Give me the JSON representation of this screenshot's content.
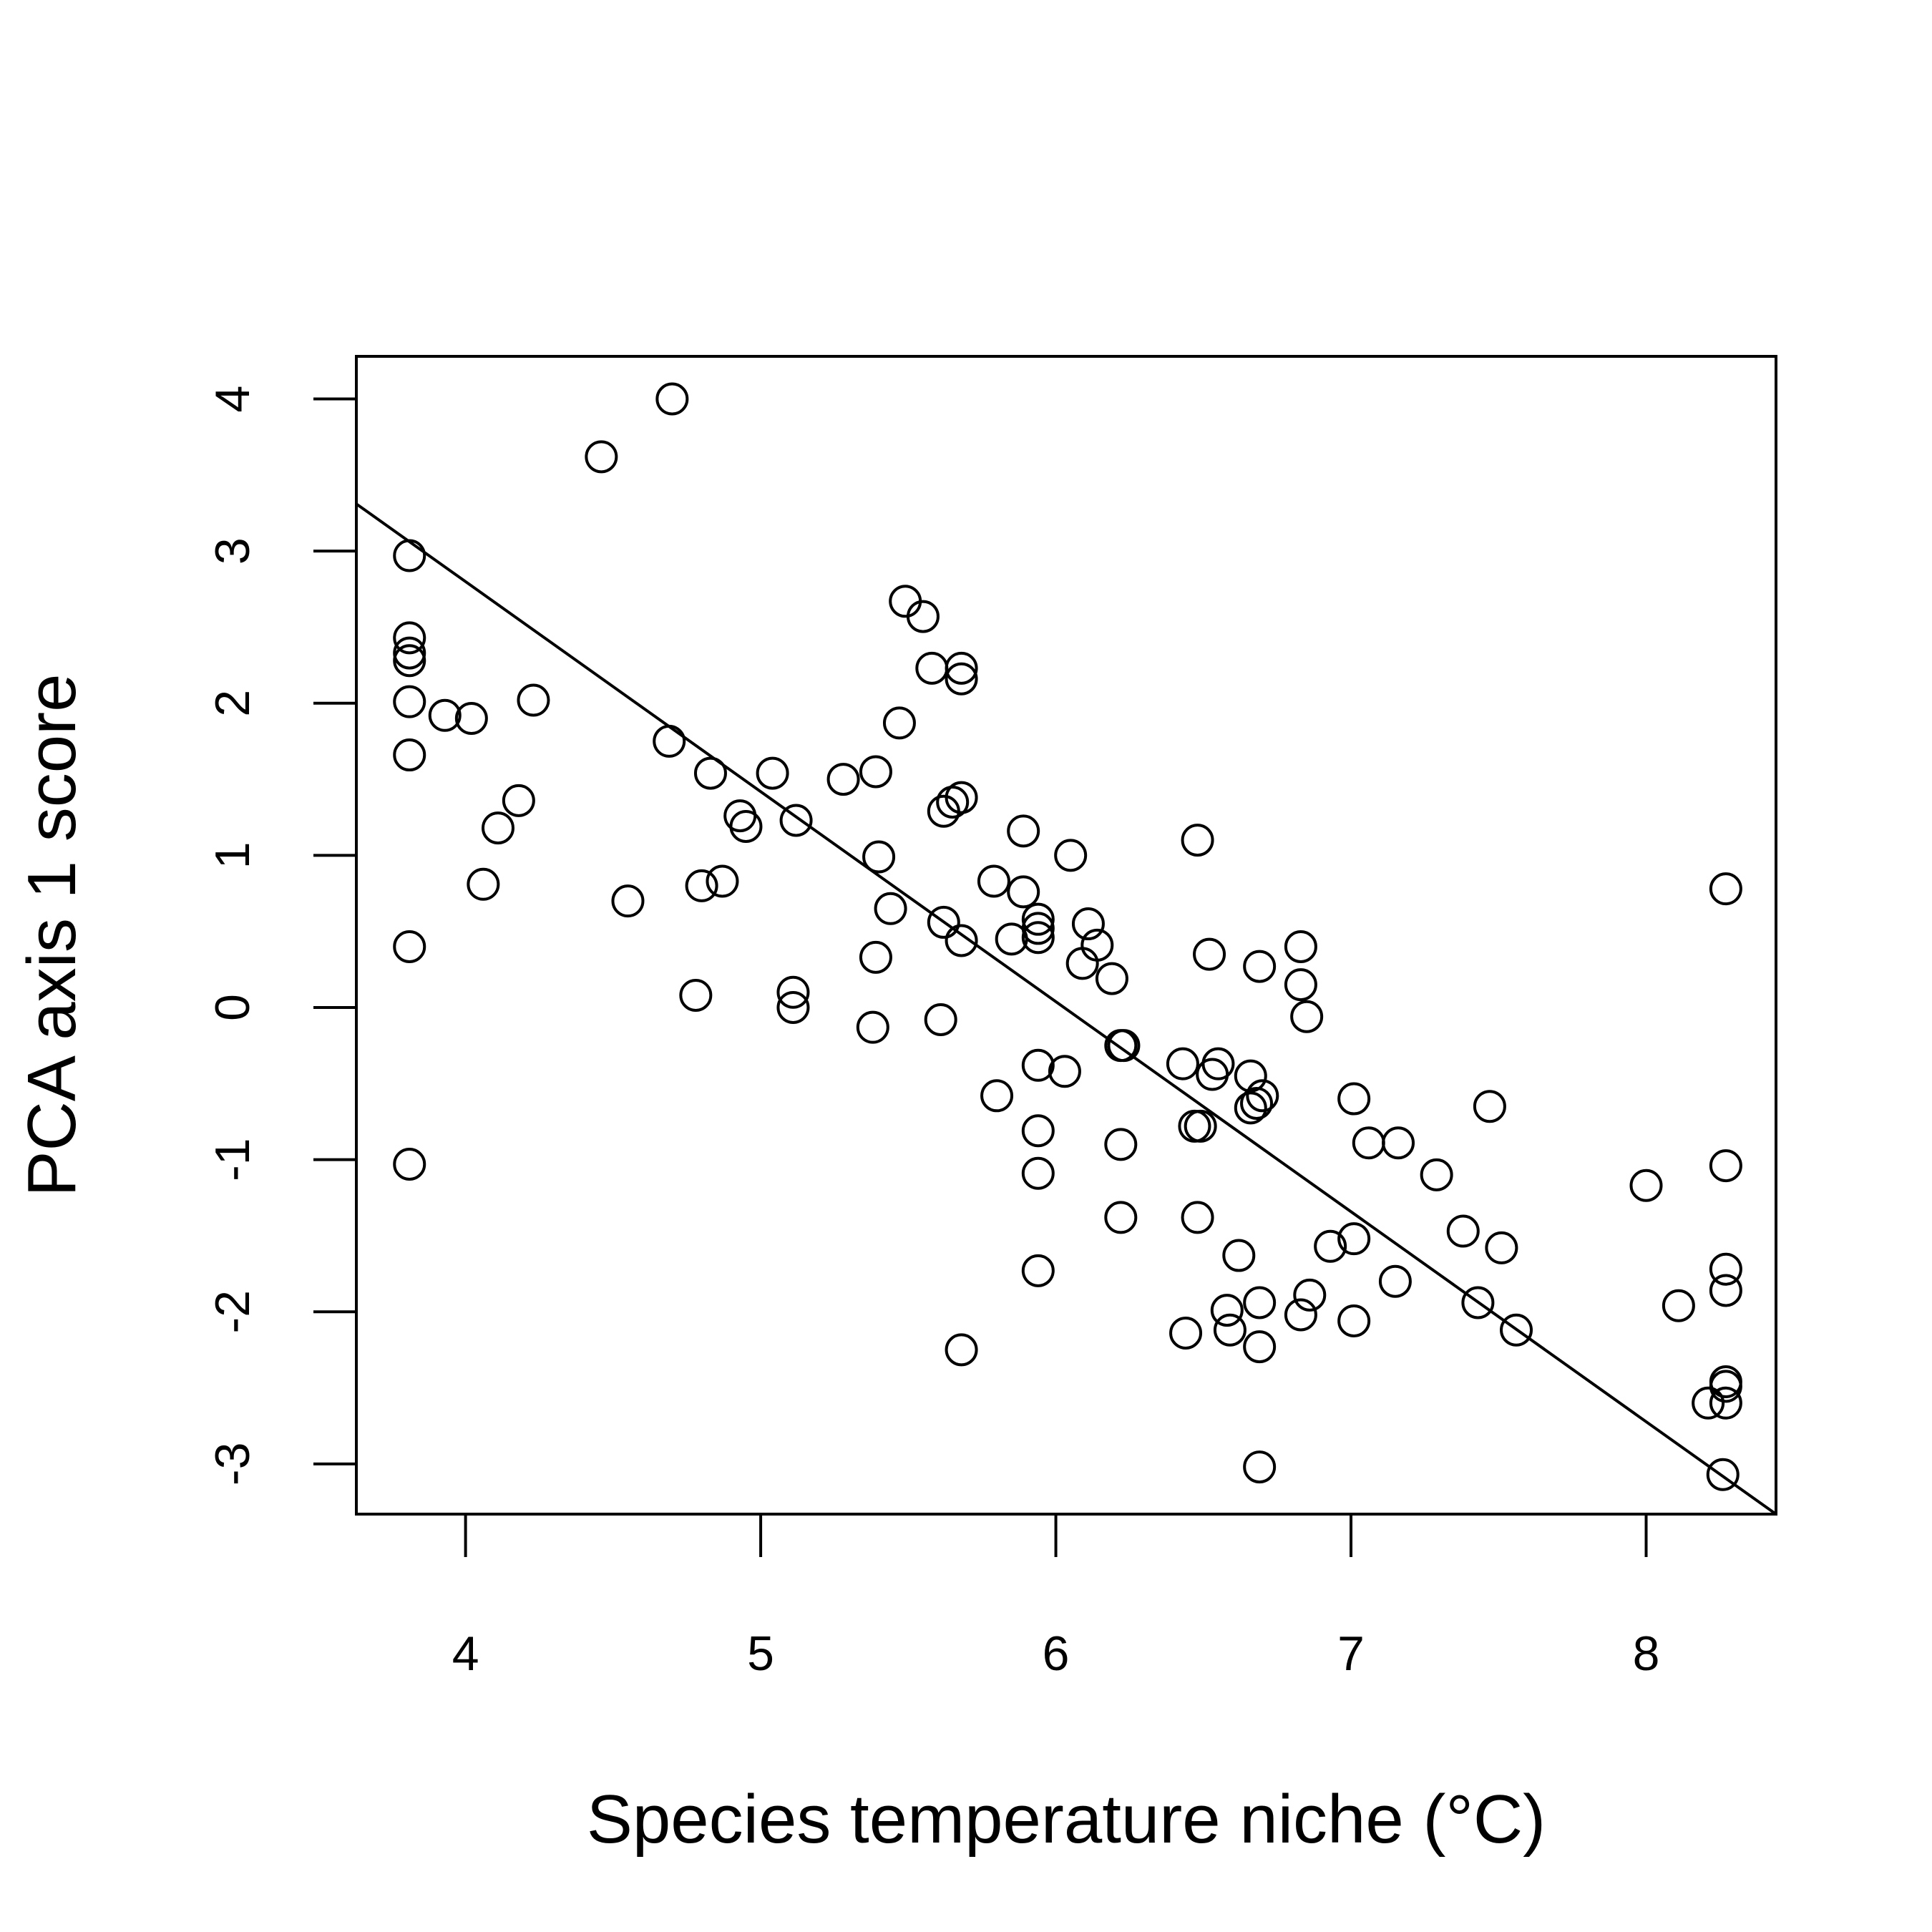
{
  "chart_data": {
    "type": "scatter",
    "xlabel": "Species temperature niche (°C)",
    "ylabel": "PCA axis 1 score",
    "xlim": [
      3.63,
      8.44
    ],
    "ylim": [
      -3.33,
      4.28
    ],
    "x_ticks": [
      {
        "value": 4,
        "label": "4"
      },
      {
        "value": 5,
        "label": "5"
      },
      {
        "value": 6,
        "label": "6"
      },
      {
        "value": 7,
        "label": "7"
      },
      {
        "value": 8,
        "label": "8"
      }
    ],
    "y_ticks": [
      {
        "value": -3,
        "label": "-3"
      },
      {
        "value": -2,
        "label": "-2"
      },
      {
        "value": -1,
        "label": "-1"
      },
      {
        "value": 0,
        "label": "0"
      },
      {
        "value": 1,
        "label": "1"
      },
      {
        "value": 2,
        "label": "2"
      },
      {
        "value": 3,
        "label": "3"
      },
      {
        "value": 4,
        "label": "4"
      }
    ],
    "grid": false,
    "point_style": "open-circle",
    "regression_line": {
      "x": [
        3.63,
        8.44
      ],
      "y": [
        3.31,
        -3.33
      ]
    },
    "points": [
      {
        "x": 3.81,
        "y": 2.97
      },
      {
        "x": 3.81,
        "y": 2.43
      },
      {
        "x": 3.81,
        "y": 2.33
      },
      {
        "x": 3.81,
        "y": 2.28
      },
      {
        "x": 3.81,
        "y": 2.01
      },
      {
        "x": 3.81,
        "y": 1.66
      },
      {
        "x": 3.81,
        "y": 0.4
      },
      {
        "x": 3.81,
        "y": -1.03
      },
      {
        "x": 3.93,
        "y": 1.92
      },
      {
        "x": 4.02,
        "y": 1.9
      },
      {
        "x": 4.06,
        "y": 0.81
      },
      {
        "x": 4.11,
        "y": 1.18
      },
      {
        "x": 4.18,
        "y": 1.36
      },
      {
        "x": 4.23,
        "y": 2.02
      },
      {
        "x": 4.46,
        "y": 3.62
      },
      {
        "x": 4.55,
        "y": 0.7
      },
      {
        "x": 4.69,
        "y": 1.75
      },
      {
        "x": 4.7,
        "y": 4.0
      },
      {
        "x": 4.78,
        "y": 0.08
      },
      {
        "x": 4.8,
        "y": 0.8
      },
      {
        "x": 4.83,
        "y": 1.54
      },
      {
        "x": 4.87,
        "y": 0.83
      },
      {
        "x": 4.93,
        "y": 1.26
      },
      {
        "x": 4.95,
        "y": 1.19
      },
      {
        "x": 5.04,
        "y": 1.54
      },
      {
        "x": 5.11,
        "y": 0.1
      },
      {
        "x": 5.11,
        "y": 0.0
      },
      {
        "x": 5.12,
        "y": 1.23
      },
      {
        "x": 5.28,
        "y": 1.5
      },
      {
        "x": 5.39,
        "y": 1.55
      },
      {
        "x": 5.39,
        "y": 0.33
      },
      {
        "x": 5.38,
        "y": -0.13
      },
      {
        "x": 5.4,
        "y": 0.99
      },
      {
        "x": 5.44,
        "y": 0.65
      },
      {
        "x": 5.47,
        "y": 1.87
      },
      {
        "x": 5.49,
        "y": 2.67
      },
      {
        "x": 5.55,
        "y": 2.57
      },
      {
        "x": 5.58,
        "y": 2.23
      },
      {
        "x": 5.62,
        "y": 1.29
      },
      {
        "x": 5.62,
        "y": 0.56
      },
      {
        "x": 5.61,
        "y": -0.08
      },
      {
        "x": 5.65,
        "y": 1.35
      },
      {
        "x": 5.68,
        "y": 1.38
      },
      {
        "x": 5.68,
        "y": 2.23
      },
      {
        "x": 5.68,
        "y": 2.16
      },
      {
        "x": 5.68,
        "y": 0.44
      },
      {
        "x": 5.68,
        "y": -2.25
      },
      {
        "x": 5.79,
        "y": 0.83
      },
      {
        "x": 5.8,
        "y": -0.58
      },
      {
        "x": 5.85,
        "y": 0.45
      },
      {
        "x": 5.89,
        "y": 1.16
      },
      {
        "x": 5.89,
        "y": 0.76
      },
      {
        "x": 5.94,
        "y": 0.58
      },
      {
        "x": 5.94,
        "y": 0.52
      },
      {
        "x": 5.94,
        "y": 0.46
      },
      {
        "x": 5.94,
        "y": -0.38
      },
      {
        "x": 5.94,
        "y": -0.81
      },
      {
        "x": 5.94,
        "y": -1.09
      },
      {
        "x": 5.94,
        "y": -1.73
      },
      {
        "x": 6.03,
        "y": -0.42
      },
      {
        "x": 6.05,
        "y": 1.0
      },
      {
        "x": 6.09,
        "y": 0.29
      },
      {
        "x": 6.11,
        "y": 0.55
      },
      {
        "x": 6.14,
        "y": 0.41
      },
      {
        "x": 6.19,
        "y": 0.19
      },
      {
        "x": 6.22,
        "y": -0.25
      },
      {
        "x": 6.23,
        "y": -0.25
      },
      {
        "x": 6.22,
        "y": -0.9
      },
      {
        "x": 6.22,
        "y": -1.38
      },
      {
        "x": 6.43,
        "y": -0.37
      },
      {
        "x": 6.44,
        "y": -2.14
      },
      {
        "x": 6.47,
        "y": -0.78
      },
      {
        "x": 6.49,
        "y": -0.78
      },
      {
        "x": 6.48,
        "y": 1.1
      },
      {
        "x": 6.48,
        "y": -1.38
      },
      {
        "x": 6.52,
        "y": 0.35
      },
      {
        "x": 6.53,
        "y": -0.44
      },
      {
        "x": 6.55,
        "y": -0.37
      },
      {
        "x": 6.58,
        "y": -1.99
      },
      {
        "x": 6.59,
        "y": -2.12
      },
      {
        "x": 6.62,
        "y": -1.63
      },
      {
        "x": 6.66,
        "y": -0.45
      },
      {
        "x": 6.66,
        "y": -0.66
      },
      {
        "x": 6.68,
        "y": -0.63
      },
      {
        "x": 6.7,
        "y": -0.58
      },
      {
        "x": 6.69,
        "y": 0.27
      },
      {
        "x": 6.69,
        "y": -1.94
      },
      {
        "x": 6.69,
        "y": -2.23
      },
      {
        "x": 6.69,
        "y": -3.02
      },
      {
        "x": 6.83,
        "y": 0.4
      },
      {
        "x": 6.83,
        "y": 0.15
      },
      {
        "x": 6.85,
        "y": -0.06
      },
      {
        "x": 6.83,
        "y": -2.02
      },
      {
        "x": 6.86,
        "y": -1.89
      },
      {
        "x": 6.93,
        "y": -1.57
      },
      {
        "x": 7.01,
        "y": -0.6
      },
      {
        "x": 7.01,
        "y": -1.52
      },
      {
        "x": 7.01,
        "y": -2.06
      },
      {
        "x": 7.06,
        "y": -0.89
      },
      {
        "x": 7.16,
        "y": -0.89
      },
      {
        "x": 7.15,
        "y": -1.8
      },
      {
        "x": 7.29,
        "y": -1.1
      },
      {
        "x": 7.38,
        "y": -1.47
      },
      {
        "x": 7.43,
        "y": -1.94
      },
      {
        "x": 7.47,
        "y": -0.65
      },
      {
        "x": 7.51,
        "y": -1.58
      },
      {
        "x": 7.56,
        "y": -2.12
      },
      {
        "x": 8.0,
        "y": -1.17
      },
      {
        "x": 8.11,
        "y": -1.96
      },
      {
        "x": 8.21,
        "y": -2.6
      },
      {
        "x": 8.27,
        "y": 0.78
      },
      {
        "x": 8.27,
        "y": -1.04
      },
      {
        "x": 8.27,
        "y": -1.72
      },
      {
        "x": 8.27,
        "y": -1.86
      },
      {
        "x": 8.27,
        "y": -2.46
      },
      {
        "x": 8.27,
        "y": -2.49
      },
      {
        "x": 8.27,
        "y": -2.6
      },
      {
        "x": 8.26,
        "y": -3.07
      }
    ]
  }
}
